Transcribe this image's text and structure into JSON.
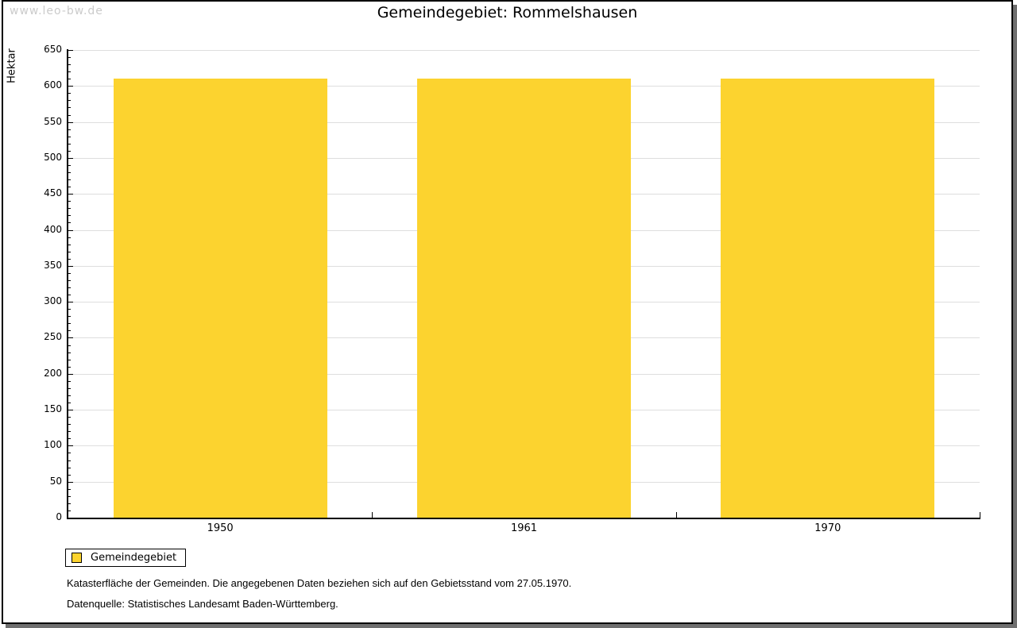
{
  "watermark": "www.leo-bw.de",
  "header": {
    "title": "Gemeindegebiet: Rommelshausen"
  },
  "chart_data": {
    "type": "bar",
    "title": "Gemeindegebiet: Rommelshausen",
    "ylabel": "Hektar",
    "xlabel": "",
    "categories": [
      "1950",
      "1961",
      "1970"
    ],
    "series": [
      {
        "name": "Gemeindegebiet",
        "color": "#fcd32f",
        "values": [
          610,
          610,
          610
        ]
      }
    ],
    "ylim": [
      0,
      650
    ],
    "y_major_step": 50,
    "y_minor_step": 10,
    "grid": "horizontal-major",
    "legend_position": "bottom-left"
  },
  "legend": {
    "items": [
      {
        "label": "Gemeindegebiet",
        "color": "#fcd32f"
      }
    ]
  },
  "notes": {
    "line1": "Katasterfläche der Gemeinden. Die angegebenen Daten beziehen sich auf den Gebietsstand vom 27.05.1970.",
    "line2": "Datenquelle: Statistisches Landesamt Baden-Württemberg."
  },
  "colors": {
    "bar": "#fcd32f",
    "gridline": "#dedede",
    "axis": "#000000",
    "shadow": "#6f6f6f",
    "watermark": "#cbcbcb",
    "background": "#ffffff"
  }
}
